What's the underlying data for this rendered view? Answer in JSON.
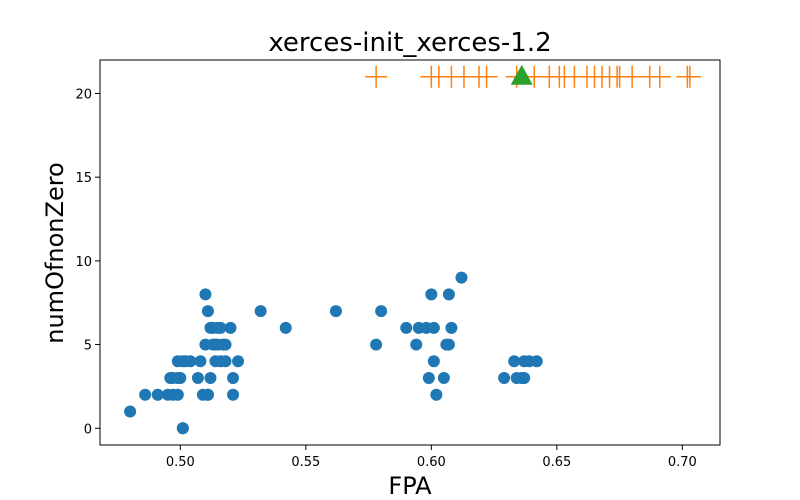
{
  "chart_data": {
    "type": "scatter",
    "title": "xerces-init_xerces-1.2",
    "xlabel": "FPA",
    "ylabel": "numOfnonZero",
    "xlim": [
      0.468,
      0.715
    ],
    "ylim": [
      -1.0,
      22.0
    ],
    "xticks": [
      0.5,
      0.55,
      0.6,
      0.65,
      0.7
    ],
    "xtick_labels": [
      "0.50",
      "0.55",
      "0.60",
      "0.65",
      "0.70"
    ],
    "yticks": [
      0,
      5,
      10,
      15,
      20
    ],
    "ytick_labels": [
      "0",
      "5",
      "10",
      "15",
      "20"
    ],
    "grid": false,
    "colors": {
      "points": "#1f77b4",
      "crosses": "#ff7f0e",
      "triangle": "#2ca02c"
    },
    "series": [
      {
        "marker": "circle",
        "x": [
          0.48,
          0.486,
          0.491,
          0.495,
          0.496,
          0.497,
          0.497,
          0.499,
          0.499,
          0.499,
          0.5,
          0.501,
          0.501,
          0.501,
          0.502,
          0.504,
          0.507,
          0.508,
          0.509,
          0.51,
          0.51,
          0.511,
          0.511,
          0.511,
          0.512,
          0.512,
          0.513,
          0.513,
          0.514,
          0.514,
          0.515,
          0.515,
          0.516,
          0.516,
          0.517,
          0.518,
          0.518,
          0.52,
          0.521,
          0.521,
          0.523,
          0.532,
          0.542,
          0.562,
          0.578,
          0.58,
          0.59,
          0.594,
          0.595,
          0.598,
          0.599,
          0.6,
          0.601,
          0.601,
          0.602,
          0.605,
          0.606,
          0.607,
          0.607,
          0.608,
          0.612,
          0.629,
          0.633,
          0.634,
          0.636,
          0.637,
          0.637,
          0.639,
          0.642
        ],
        "y": [
          1,
          2,
          2,
          2,
          3,
          2,
          3,
          3,
          4,
          2,
          3,
          0,
          4,
          0,
          4,
          4,
          3,
          4,
          2,
          5,
          8,
          2,
          7,
          2,
          6,
          3,
          5,
          6,
          5,
          4,
          6,
          5,
          6,
          4,
          5,
          4,
          5,
          6,
          3,
          2,
          4,
          7,
          6,
          7,
          5,
          7,
          6,
          5,
          6,
          6,
          3,
          8,
          4,
          6,
          2,
          3,
          5,
          5,
          8,
          6,
          9,
          3,
          4,
          3,
          3,
          4,
          3,
          4,
          4
        ]
      },
      {
        "marker": "plus",
        "x": [
          0.578,
          0.6,
          0.603,
          0.608,
          0.613,
          0.619,
          0.622,
          0.634,
          0.641,
          0.647,
          0.651,
          0.653,
          0.657,
          0.662,
          0.665,
          0.668,
          0.671,
          0.674,
          0.675,
          0.68,
          0.687,
          0.691,
          0.702,
          0.703
        ],
        "y": [
          21,
          21,
          21,
          21,
          21,
          21,
          21,
          21,
          21,
          21,
          21,
          21,
          21,
          21,
          21,
          21,
          21,
          21,
          21,
          21,
          21,
          21,
          21,
          21
        ]
      },
      {
        "marker": "triangle",
        "x": [
          0.636
        ],
        "y": [
          21
        ]
      }
    ]
  }
}
